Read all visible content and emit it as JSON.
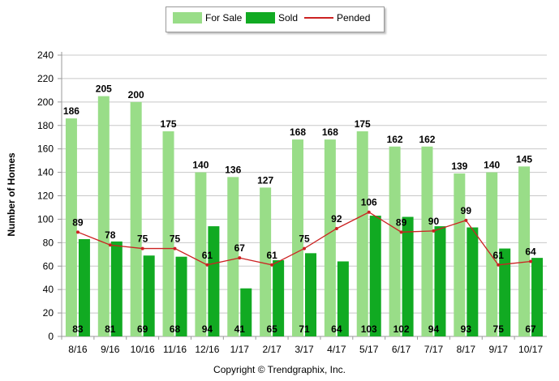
{
  "chart_data": {
    "type": "bar",
    "categories": [
      "8/16",
      "9/16",
      "10/16",
      "11/16",
      "12/16",
      "1/17",
      "2/17",
      "3/17",
      "4/17",
      "5/17",
      "6/17",
      "7/17",
      "8/17",
      "9/17",
      "10/17"
    ],
    "series": [
      {
        "name": "For Sale",
        "kind": "bar",
        "color": "#99dd88",
        "values": [
          186,
          205,
          200,
          175,
          140,
          136,
          127,
          168,
          168,
          175,
          162,
          162,
          139,
          140,
          145
        ]
      },
      {
        "name": "Sold",
        "kind": "bar",
        "color": "#11aa22",
        "values": [
          83,
          81,
          69,
          68,
          94,
          41,
          65,
          71,
          64,
          103,
          102,
          94,
          93,
          75,
          67
        ]
      },
      {
        "name": "Pended",
        "kind": "line",
        "color": "#cc2222",
        "values": [
          89,
          78,
          75,
          75,
          61,
          67,
          61,
          75,
          92,
          106,
          89,
          90,
          99,
          61,
          64
        ]
      }
    ],
    "title": "",
    "xlabel": "",
    "ylabel": "Number of Homes",
    "ylim": [
      0,
      240
    ],
    "yticks": [
      0,
      20,
      40,
      60,
      80,
      100,
      120,
      140,
      160,
      180,
      200,
      220,
      240
    ],
    "grid": true,
    "legend_position": "top-center"
  },
  "footer": {
    "copyright": "Copyright © Trendgraphix, Inc."
  }
}
